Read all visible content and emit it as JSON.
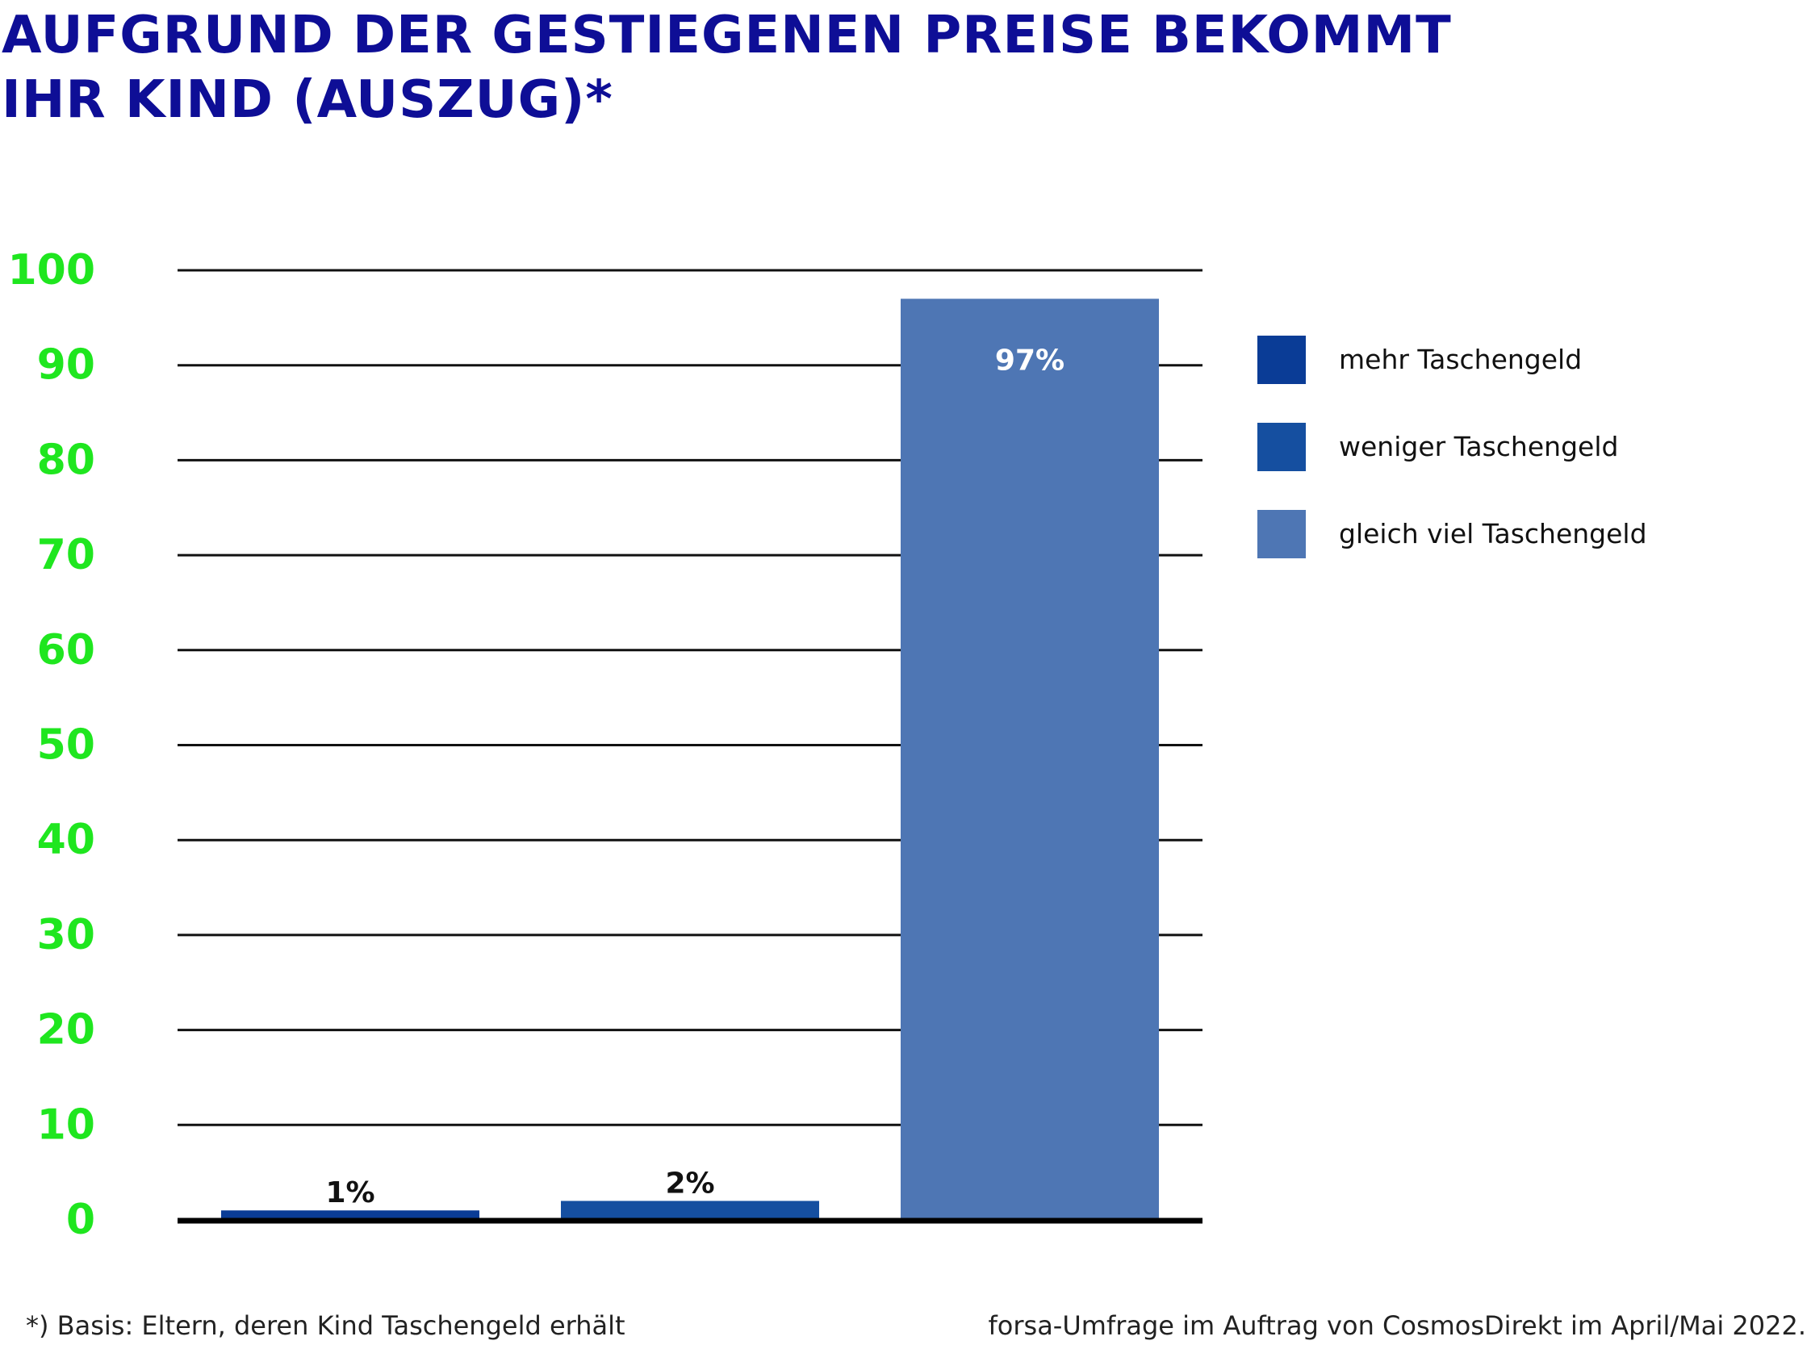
{
  "title": {
    "line1": "AUFGRUND DER GESTIEGENEN PREISE BEKOMMT",
    "line2": "IHR KIND (AUSZUG)*"
  },
  "footnote": "*) Basis: Eltern, deren Kind Taschengeld erhält",
  "source": "forsa-Umfrage im Auftrag von CosmosDirekt im April/Mai 2022.",
  "colors": {
    "title": "#0e0e96",
    "axis_ticks": "#1fe61f",
    "gridline": "#111111"
  },
  "chart_data": {
    "type": "bar",
    "title": "AUFGRUND DER GESTIEGENEN PREISE BEKOMMT IHR KIND (AUSZUG)*",
    "categories": [
      "mehr Taschengeld",
      "weniger Taschengeld",
      "gleich viel Taschengeld"
    ],
    "values": [
      1,
      2,
      97
    ],
    "value_labels": [
      "1%",
      "2%",
      "97%"
    ],
    "colors": [
      "#0a3c96",
      "#154fa0",
      "#4e76b4"
    ],
    "ylim": [
      0,
      100
    ],
    "yticks": [
      0,
      10,
      20,
      30,
      40,
      50,
      60,
      70,
      80,
      90,
      100
    ],
    "ytick_labels": [
      "0",
      "10",
      "20",
      "30",
      "40",
      "50",
      "60",
      "70",
      "80",
      "90",
      "100"
    ],
    "xlabel": "",
    "ylabel": "",
    "grid": true,
    "legend": "right"
  }
}
